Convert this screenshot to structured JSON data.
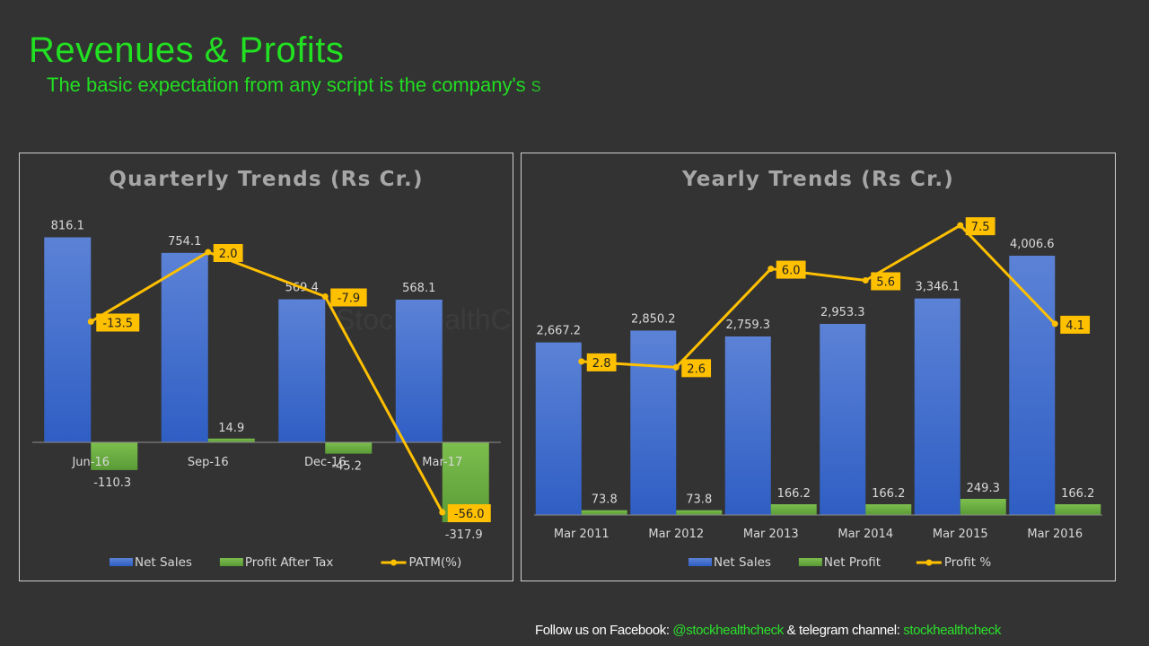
{
  "page": {
    "title": "Revenues & Profits",
    "subtitle": "The basic expectation from any script is the company's s"
  },
  "footer": {
    "prefix": "Follow us on Facebook: ",
    "facebook": "@stockhealthcheck",
    "middle": " & telegram channel: ",
    "telegram": "stockhealthcheck"
  },
  "colors": {
    "background": "#333333",
    "net_sales": "#4472C4",
    "profit": "#70AD47",
    "line": "#FFC000",
    "title_green": "#22E022"
  },
  "chart_data": [
    {
      "type": "bar",
      "title": "Quarterly Trends (Rs Cr.)",
      "watermark": "StockHealthCheck",
      "categories": [
        "Jun-16",
        "Sep-16",
        "Dec-16",
        "Mar-17"
      ],
      "series": [
        {
          "name": "Net Sales",
          "type": "bar",
          "values": [
            816.1,
            754.1,
            569.4,
            568.1
          ],
          "labels": [
            "816.1",
            "754.1",
            "569.4",
            "568.1"
          ]
        },
        {
          "name": "Profit After Tax",
          "type": "bar",
          "values": [
            -110.3,
            14.9,
            -45.2,
            -317.9
          ],
          "labels": [
            "-110.3",
            "14.9",
            "-45.2",
            "-317.9"
          ]
        },
        {
          "name": "PATM(%)",
          "type": "line",
          "axis": "secondary",
          "values": [
            -13.5,
            2.0,
            -7.9,
            -56.0
          ],
          "labels": [
            "-13.5",
            "2.0",
            "-7.9",
            "-56.0"
          ]
        }
      ],
      "ylim": [
        -350,
        900
      ],
      "y2lim": [
        -60,
        10
      ],
      "legend": "bottom",
      "grid": false
    },
    {
      "type": "bar",
      "title": "Yearly Trends (Rs Cr.)",
      "categories": [
        "Mar 2011",
        "Mar 2012",
        "Mar 2013",
        "Mar 2014",
        "Mar 2015",
        "Mar 2016"
      ],
      "series": [
        {
          "name": "Net Sales",
          "type": "bar",
          "values": [
            2667.2,
            2850.2,
            2759.3,
            2953.3,
            3346.1,
            4006.6
          ],
          "labels": [
            "2,667.2",
            "2,850.2",
            "2,759.3",
            "2,953.3",
            "3,346.1",
            "4,006.6"
          ]
        },
        {
          "name": "Net Profit",
          "type": "bar",
          "values": [
            73.8,
            73.8,
            166.2,
            166.2,
            249.3,
            166.2
          ],
          "labels": [
            "73.8",
            "73.8",
            "166.2",
            "166.2",
            "249.3",
            "166.2"
          ]
        },
        {
          "name": "Profit %",
          "type": "line",
          "axis": "secondary",
          "values": [
            2.8,
            2.6,
            6.0,
            5.6,
            7.5,
            4.1
          ],
          "labels": [
            "2.8",
            "2.6",
            "6.0",
            "5.6",
            "7.5",
            "4.1"
          ]
        }
      ],
      "ylim": [
        0,
        4700
      ],
      "y2lim": [
        -2.5,
        8
      ],
      "legend": "bottom",
      "grid": false
    }
  ]
}
